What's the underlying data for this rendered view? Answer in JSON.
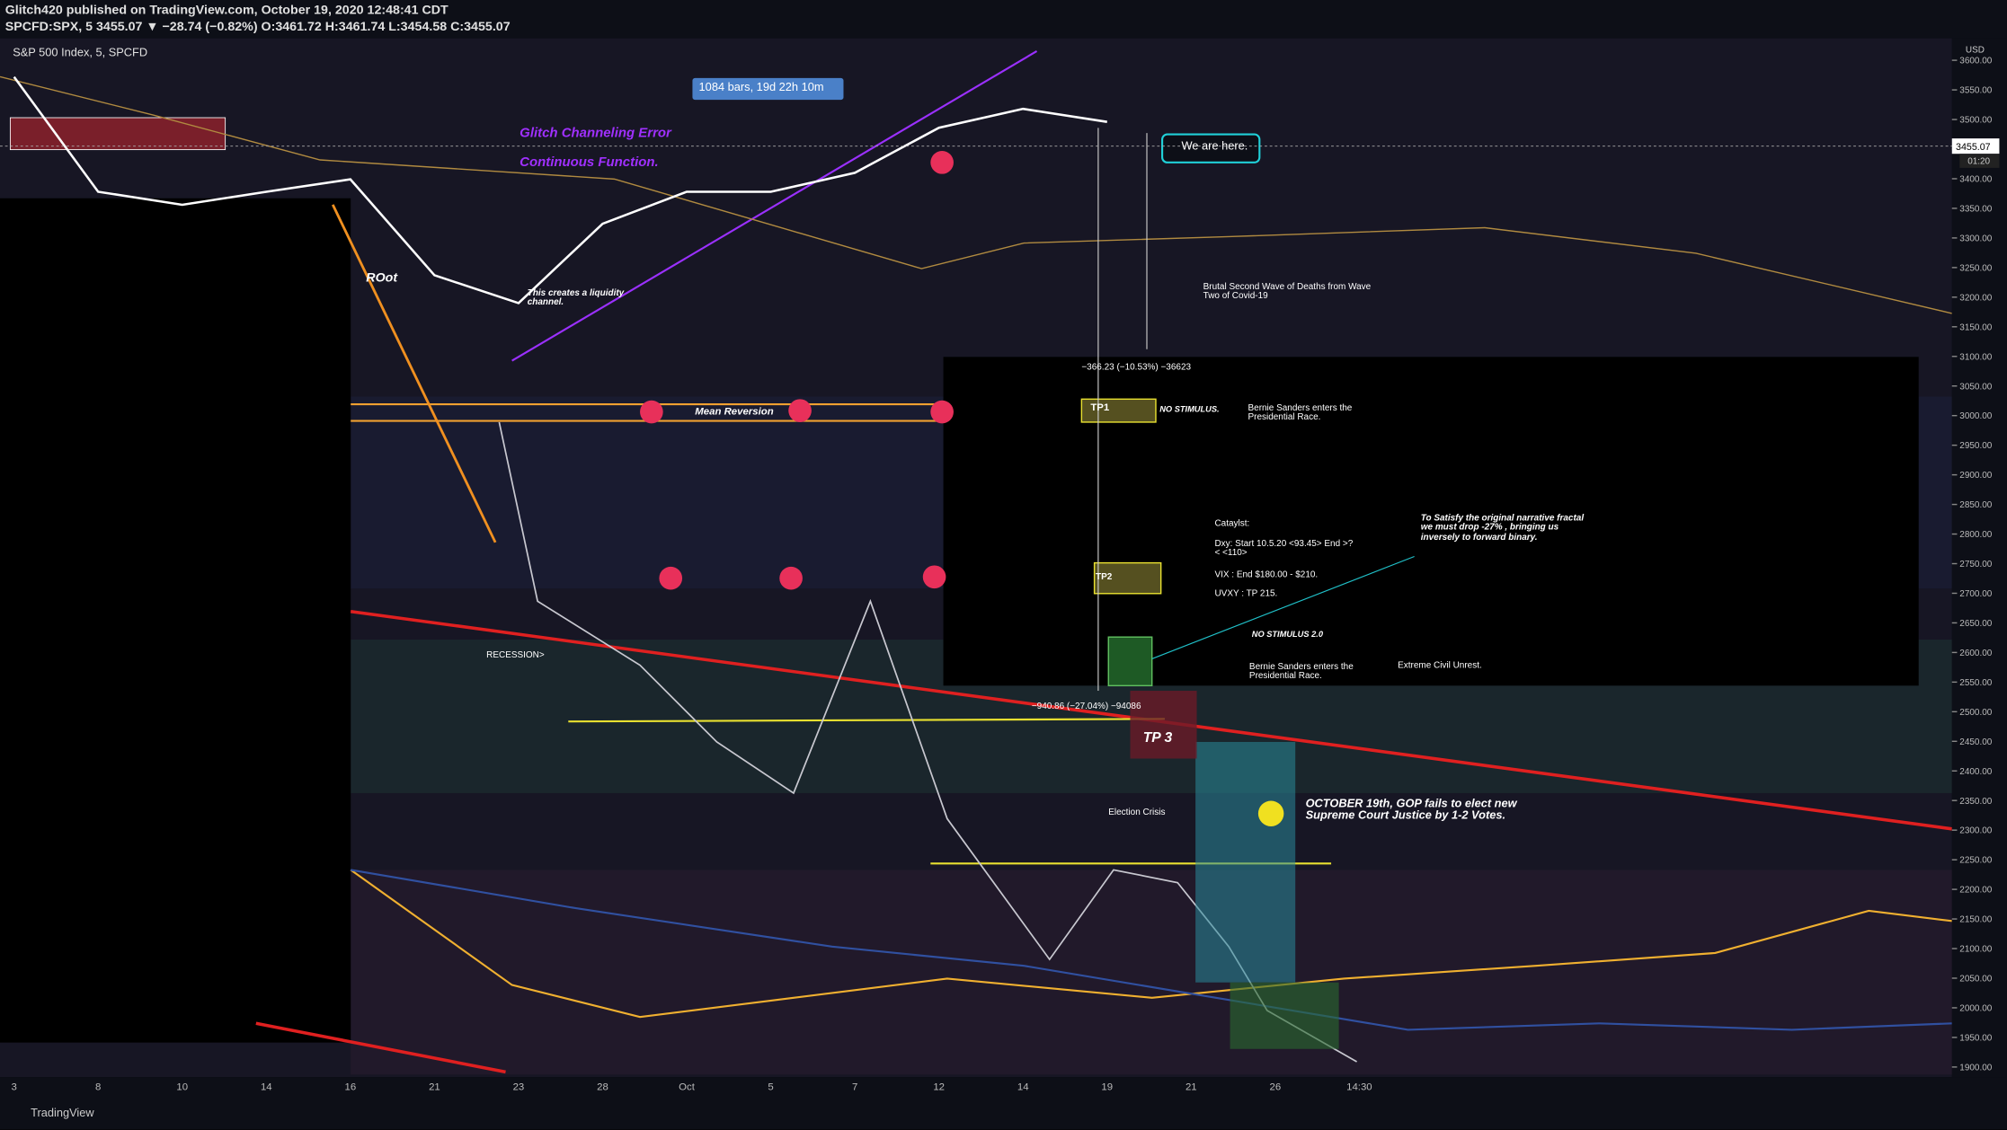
{
  "header": {
    "line1": "Glitch420 published on TradingView.com, October 19, 2020 12:48:41 CDT",
    "line2": "SPCFD:SPX, 5  3455.07 ▼ −28.74 (−0.82%) O:3461.72 H:3461.74 L:3454.58 C:3455.07",
    "footer": "TradingView"
  },
  "chart_data": {
    "type": "line",
    "title": "S&P 500 Index, 5, SPCFD",
    "currency": "USD",
    "categories": [
      "3",
      "8",
      "10",
      "14",
      "16",
      "21",
      "23",
      "28",
      "Oct",
      "5",
      "7",
      "12",
      "14",
      "19",
      "21",
      "26",
      "14:30"
    ],
    "series": [
      {
        "name": "SPX",
        "color": "#ffffff",
        "values": [
          3572,
          3378,
          3356,
          3378,
          3399,
          3237,
          3190,
          3324,
          3378,
          3378,
          3410,
          3486,
          3518,
          3496,
          null,
          null,
          null
        ]
      }
    ],
    "ylim": [
      1883,
      3637
    ],
    "yticks": [
      {
        "value": 1900,
        "label": "1900.00"
      },
      {
        "value": 1950,
        "label": "1950.00"
      },
      {
        "value": 2000,
        "label": "2000.00"
      },
      {
        "value": 2050,
        "label": "2050.00"
      },
      {
        "value": 2100,
        "label": "2100.00"
      },
      {
        "value": 2150,
        "label": "2150.00"
      },
      {
        "value": 2200,
        "label": "2200.00"
      },
      {
        "value": 2250,
        "label": "2250.00"
      },
      {
        "value": 2300,
        "label": "2300.00"
      },
      {
        "value": 2350,
        "label": "2350.00"
      },
      {
        "value": 2400,
        "label": "2400.00"
      },
      {
        "value": 2450,
        "label": "2450.00"
      },
      {
        "value": 2500,
        "label": "2500.00"
      },
      {
        "value": 2550,
        "label": "2550.00"
      },
      {
        "value": 2600,
        "label": "2600.00"
      },
      {
        "value": 2650,
        "label": "2650.00"
      },
      {
        "value": 2700,
        "label": "2700.00"
      },
      {
        "value": 2750,
        "label": "2750.00"
      },
      {
        "value": 2800,
        "label": "2800.00"
      },
      {
        "value": 2850,
        "label": "2850.00"
      },
      {
        "value": 2900,
        "label": "2900.00"
      },
      {
        "value": 2950,
        "label": "2950.00"
      },
      {
        "value": 3000,
        "label": "3000.00"
      },
      {
        "value": 3050,
        "label": "3050.00"
      },
      {
        "value": 3100,
        "label": "3100.00"
      },
      {
        "value": 3150,
        "label": "3150.00"
      },
      {
        "value": 3200,
        "label": "3200.00"
      },
      {
        "value": 3250,
        "label": "3250.00"
      },
      {
        "value": 3300,
        "label": "3300.00"
      },
      {
        "value": 3350,
        "label": "3350.00"
      },
      {
        "value": 3400,
        "label": "3400.00"
      },
      {
        "value": 3450,
        "label": "3450.00"
      },
      {
        "value": 3500,
        "label": "3500.00"
      },
      {
        "value": 3550,
        "label": "3550.00"
      },
      {
        "value": 3600,
        "label": "3600.00"
      }
    ],
    "grid": false,
    "last_price": {
      "value": 3455.07,
      "label": "3455.07"
    },
    "countdown": "01:20",
    "annotations": [
      "1084 bars, 19d 22h 10m",
      "Glitch Channeling Error",
      "Continuous Function.",
      "We are here.",
      "ROot",
      "This creates a liquidity channel.",
      "Brutal Second Wave of Deaths from Wave Two of Covid-19",
      "−366.23 (−10.53%) −36623",
      "TP1",
      "NO STIMULUS.",
      "Bernie Sanders enters the Presidential Race.",
      "Mean Reversion",
      "Cataylst:",
      "Dxy: Start 10.5.20 <93.45> End >?< <110>",
      "VIX : End $180.00 - $210.",
      "UVXY : TP 215.",
      "To Satisfy the original narrative fractal we must drop -27% , bringing us inversely to forward binary.",
      "TP2",
      "NO STIMULUS 2.0",
      "RECESSION>",
      "Bernie Sanders enters the Presidential Race.",
      "Extreme Civil Unrest.",
      "−940.86 (−27.04%) −94086",
      "TP 3",
      "OCTOBER 19th, GOP fails to elect new Supreme Court Justice by 1-2 Votes.",
      "Election Crisis"
    ]
  }
}
